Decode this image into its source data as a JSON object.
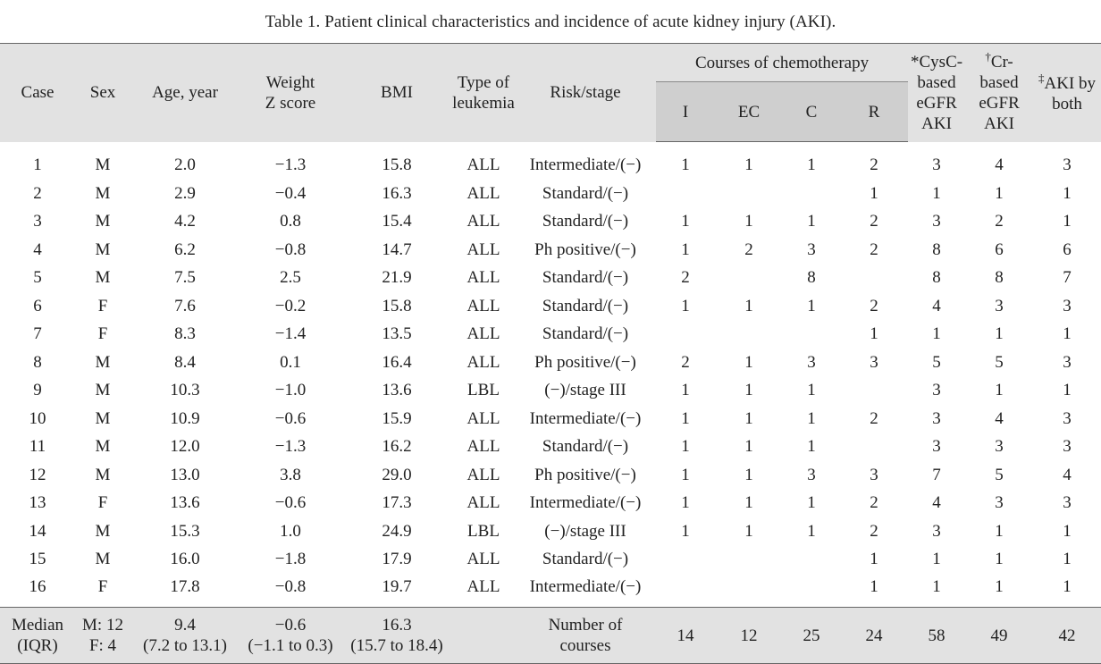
{
  "caption": "Table 1.  Patient clinical characteristics and incidence of acute kidney injury (AKI).",
  "headers": {
    "case": "Case",
    "sex": "Sex",
    "age": "Age, year",
    "weight_l1": "Weight",
    "weight_l2": "Z score",
    "bmi": "BMI",
    "type_l1": "Type of",
    "type_l2": "leukemia",
    "risk": "Risk/stage",
    "courses": "Courses of chemotherapy",
    "course_i": "I",
    "course_ec": "EC",
    "course_c": "C",
    "course_r": "R",
    "cysc_mark": "*",
    "cysc_l1": "CysC-",
    "cysc_l2": "based",
    "cysc_l3": "eGFR",
    "cysc_l4": "AKI",
    "cr_mark": "†",
    "cr_l1": "Cr-",
    "cr_l2": "based",
    "cr_l3": "eGFR",
    "cr_l4": "AKI",
    "both_mark": "‡",
    "both_l1": "AKI by",
    "both_l2": "both"
  },
  "rows": [
    {
      "case": "1",
      "sex": "M",
      "age": "2.0",
      "weight": "−1.3",
      "bmi": "15.8",
      "type": "ALL",
      "risk": "Intermediate/(−)",
      "i": "1",
      "ec": "1",
      "c": "1",
      "r": "2",
      "cysc": "3",
      "cr": "4",
      "both": "3"
    },
    {
      "case": "2",
      "sex": "M",
      "age": "2.9",
      "weight": "−0.4",
      "bmi": "16.3",
      "type": "ALL",
      "risk": "Standard/(−)",
      "i": "",
      "ec": "",
      "c": "",
      "r": "1",
      "cysc": "1",
      "cr": "1",
      "both": "1"
    },
    {
      "case": "3",
      "sex": "M",
      "age": "4.2",
      "weight": "0.8",
      "bmi": "15.4",
      "type": "ALL",
      "risk": "Standard/(−)",
      "i": "1",
      "ec": "1",
      "c": "1",
      "r": "2",
      "cysc": "3",
      "cr": "2",
      "both": "1"
    },
    {
      "case": "4",
      "sex": "M",
      "age": "6.2",
      "weight": "−0.8",
      "bmi": "14.7",
      "type": "ALL",
      "risk": "Ph positive/(−)",
      "i": "1",
      "ec": "2",
      "c": "3",
      "r": "2",
      "cysc": "8",
      "cr": "6",
      "both": "6"
    },
    {
      "case": "5",
      "sex": "M",
      "age": "7.5",
      "weight": "2.5",
      "bmi": "21.9",
      "type": "ALL",
      "risk": "Standard/(−)",
      "i": "2",
      "ec": "",
      "c": "8",
      "r": "",
      "cysc": "8",
      "cr": "8",
      "both": "7"
    },
    {
      "case": "6",
      "sex": "F",
      "age": "7.6",
      "weight": "−0.2",
      "bmi": "15.8",
      "type": "ALL",
      "risk": "Standard/(−)",
      "i": "1",
      "ec": "1",
      "c": "1",
      "r": "2",
      "cysc": "4",
      "cr": "3",
      "both": "3"
    },
    {
      "case": "7",
      "sex": "F",
      "age": "8.3",
      "weight": "−1.4",
      "bmi": "13.5",
      "type": "ALL",
      "risk": "Standard/(−)",
      "i": "",
      "ec": "",
      "c": "",
      "r": "1",
      "cysc": "1",
      "cr": "1",
      "both": "1"
    },
    {
      "case": "8",
      "sex": "M",
      "age": "8.4",
      "weight": "0.1",
      "bmi": "16.4",
      "type": "ALL",
      "risk": "Ph positive/(−)",
      "i": "2",
      "ec": "1",
      "c": "3",
      "r": "3",
      "cysc": "5",
      "cr": "5",
      "both": "3"
    },
    {
      "case": "9",
      "sex": "M",
      "age": "10.3",
      "weight": "−1.0",
      "bmi": "13.6",
      "type": "LBL",
      "risk": "(−)/stage III",
      "i": "1",
      "ec": "1",
      "c": "1",
      "r": "",
      "cysc": "3",
      "cr": "1",
      "both": "1"
    },
    {
      "case": "10",
      "sex": "M",
      "age": "10.9",
      "weight": "−0.6",
      "bmi": "15.9",
      "type": "ALL",
      "risk": "Intermediate/(−)",
      "i": "1",
      "ec": "1",
      "c": "1",
      "r": "2",
      "cysc": "3",
      "cr": "4",
      "both": "3"
    },
    {
      "case": "11",
      "sex": "M",
      "age": "12.0",
      "weight": "−1.3",
      "bmi": "16.2",
      "type": "ALL",
      "risk": "Standard/(−)",
      "i": "1",
      "ec": "1",
      "c": "1",
      "r": "",
      "cysc": "3",
      "cr": "3",
      "both": "3"
    },
    {
      "case": "12",
      "sex": "M",
      "age": "13.0",
      "weight": "3.8",
      "bmi": "29.0",
      "type": "ALL",
      "risk": "Ph positive/(−)",
      "i": "1",
      "ec": "1",
      "c": "3",
      "r": "3",
      "cysc": "7",
      "cr": "5",
      "both": "4"
    },
    {
      "case": "13",
      "sex": "F",
      "age": "13.6",
      "weight": "−0.6",
      "bmi": "17.3",
      "type": "ALL",
      "risk": "Intermediate/(−)",
      "i": "1",
      "ec": "1",
      "c": "1",
      "r": "2",
      "cysc": "4",
      "cr": "3",
      "both": "3"
    },
    {
      "case": "14",
      "sex": "M",
      "age": "15.3",
      "weight": "1.0",
      "bmi": "24.9",
      "type": "LBL",
      "risk": "(−)/stage III",
      "i": "1",
      "ec": "1",
      "c": "1",
      "r": "2",
      "cysc": "3",
      "cr": "1",
      "both": "1"
    },
    {
      "case": "15",
      "sex": "M",
      "age": "16.0",
      "weight": "−1.8",
      "bmi": "17.9",
      "type": "ALL",
      "risk": "Standard/(−)",
      "i": "",
      "ec": "",
      "c": "",
      "r": "1",
      "cysc": "1",
      "cr": "1",
      "both": "1"
    },
    {
      "case": "16",
      "sex": "F",
      "age": "17.8",
      "weight": "−0.8",
      "bmi": "19.7",
      "type": "ALL",
      "risk": "Intermediate/(−)",
      "i": "",
      "ec": "",
      "c": "",
      "r": "1",
      "cysc": "1",
      "cr": "1",
      "both": "1"
    }
  ],
  "summary": {
    "label_l1": "Median",
    "label_l2": "(IQR)",
    "sex_l1": "M: 12",
    "sex_l2": "F: 4",
    "age_l1": "9.4",
    "age_l2": "(7.2 to 13.1)",
    "weight_l1": "−0.6",
    "weight_l2": "(−1.1 to 0.3)",
    "bmi_l1": "16.3",
    "bmi_l2": "(15.7 to 18.4)",
    "courses_l1": "Number of",
    "courses_l2": "courses",
    "i": "14",
    "ec": "12",
    "c": "25",
    "r": "24",
    "cysc": "58",
    "cr": "49",
    "both": "42"
  }
}
